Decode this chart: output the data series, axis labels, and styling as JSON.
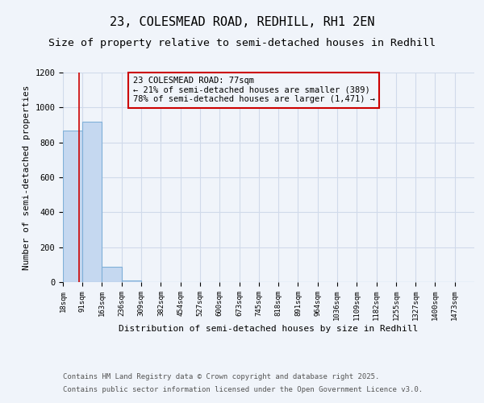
{
  "title_line1": "23, COLESMEAD ROAD, REDHILL, RH1 2EN",
  "title_line2": "Size of property relative to semi-detached houses in Redhill",
  "xlabel": "Distribution of semi-detached houses by size in Redhill",
  "ylabel": "Number of semi-detached properties",
  "annotation_text": "23 COLESMEAD ROAD: 77sqm\n← 21% of semi-detached houses are smaller (389)\n78% of semi-detached houses are larger (1,471) →",
  "footer_line1": "Contains HM Land Registry data © Crown copyright and database right 2025.",
  "footer_line2": "Contains public sector information licensed under the Open Government Licence v3.0.",
  "bin_labels": [
    "18sqm",
    "91sqm",
    "163sqm",
    "236sqm",
    "309sqm",
    "382sqm",
    "454sqm",
    "527sqm",
    "600sqm",
    "673sqm",
    "745sqm",
    "818sqm",
    "891sqm",
    "964sqm",
    "1036sqm",
    "1109sqm",
    "1182sqm",
    "1255sqm",
    "1327sqm",
    "1400sqm",
    "1473sqm"
  ],
  "bin_edges": [
    18,
    91,
    163,
    236,
    309,
    382,
    454,
    527,
    600,
    673,
    745,
    818,
    891,
    964,
    1036,
    1109,
    1182,
    1255,
    1327,
    1400,
    1473,
    1546
  ],
  "bar_heights": [
    870,
    920,
    90,
    10,
    0,
    0,
    0,
    0,
    0,
    0,
    0,
    0,
    0,
    0,
    0,
    0,
    0,
    0,
    0,
    0,
    0
  ],
  "bar_color": "#c5d8f0",
  "bar_edge_color": "#7fb0d8",
  "property_line_x": 77,
  "property_line_color": "#cc0000",
  "annotation_box_color": "#cc0000",
  "ylim": [
    0,
    1200
  ],
  "background_color": "#f0f4fa",
  "grid_color": "#d0daea",
  "title_fontsize": 11,
  "subtitle_fontsize": 9.5,
  "tick_fontsize": 6.5,
  "ylabel_fontsize": 8,
  "xlabel_fontsize": 8,
  "annotation_fontsize": 7.5,
  "footer_fontsize": 6.5
}
